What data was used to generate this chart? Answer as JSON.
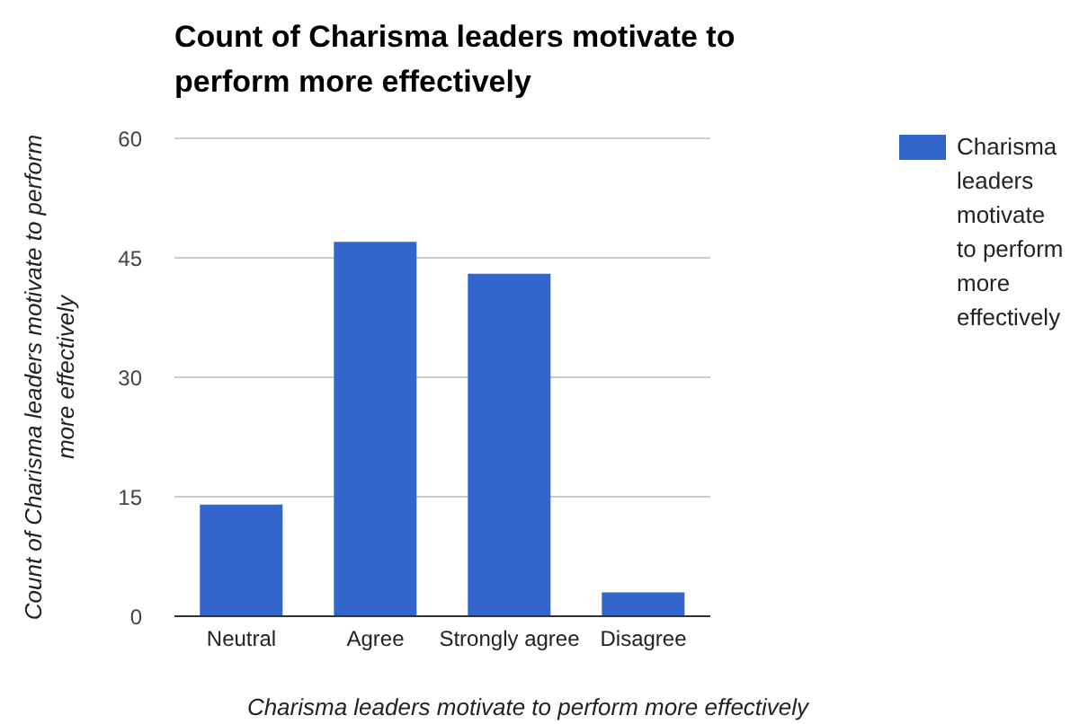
{
  "chart_data": {
    "type": "bar",
    "title": "Count of Charisma leaders motivate to perform more effectively",
    "xlabel": "Charisma leaders motivate to perform more effectively",
    "ylabel": "Count of Charisma leaders motivate to perform more effectively",
    "categories": [
      "Neutral",
      "Agree",
      "Strongly agree",
      "Disagree"
    ],
    "series": [
      {
        "name": "Charisma leaders motivate to perform more effectively",
        "color": "#3366cc",
        "values": [
          14,
          47,
          43,
          3
        ]
      }
    ],
    "ylim": [
      0,
      60
    ],
    "yticks": [
      0,
      15,
      30,
      45,
      60
    ],
    "grid": "y",
    "legend": "right"
  }
}
